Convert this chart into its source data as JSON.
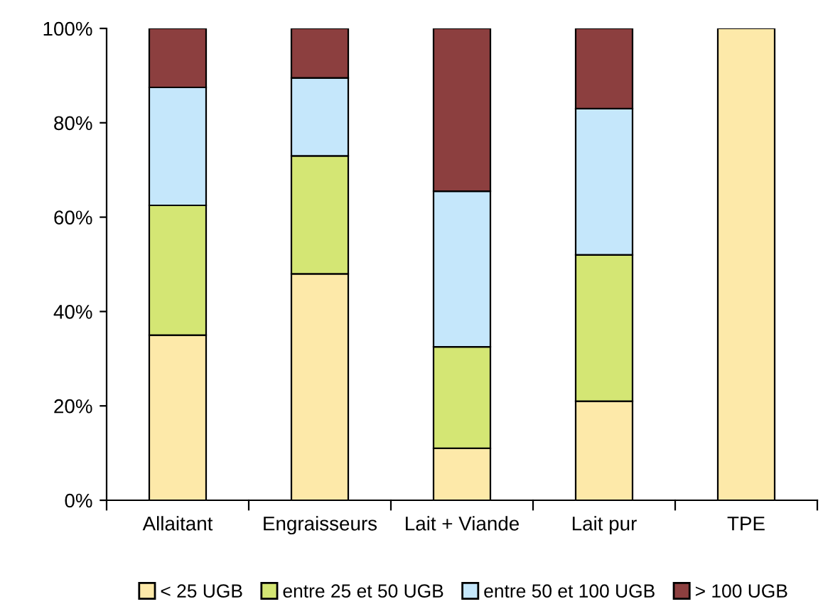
{
  "chart_data": {
    "type": "bar",
    "stacked": true,
    "categories": [
      "Allaitant",
      "Engraisseurs",
      "Lait + Viande",
      "Lait pur",
      "TPE"
    ],
    "series": [
      {
        "name": "< 25 UGB",
        "color": "#fde9a9",
        "values": [
          35,
          48,
          11,
          21,
          100
        ]
      },
      {
        "name": "entre 25 et 50 UGB",
        "color": "#d4e674",
        "values": [
          27.5,
          25,
          21.5,
          31,
          null
        ]
      },
      {
        "name": "entre 50 et 100 UGB",
        "color": "#c5e7fb",
        "values": [
          25,
          16.5,
          33,
          31,
          null
        ]
      },
      {
        "name": "> 100 UGB",
        "color": "#8c3f3f",
        "values": [
          12.5,
          10.5,
          34.5,
          17,
          null
        ]
      }
    ],
    "ylim": [
      0,
      100
    ],
    "yticks": [
      {
        "value": 0,
        "label": "0%"
      },
      {
        "value": 20,
        "label": "20%"
      },
      {
        "value": 40,
        "label": "40%"
      },
      {
        "value": 60,
        "label": "60%"
      },
      {
        "value": 80,
        "label": "80%"
      },
      {
        "value": 100,
        "label": "100%"
      }
    ],
    "grid": false,
    "legend": "bottom"
  }
}
